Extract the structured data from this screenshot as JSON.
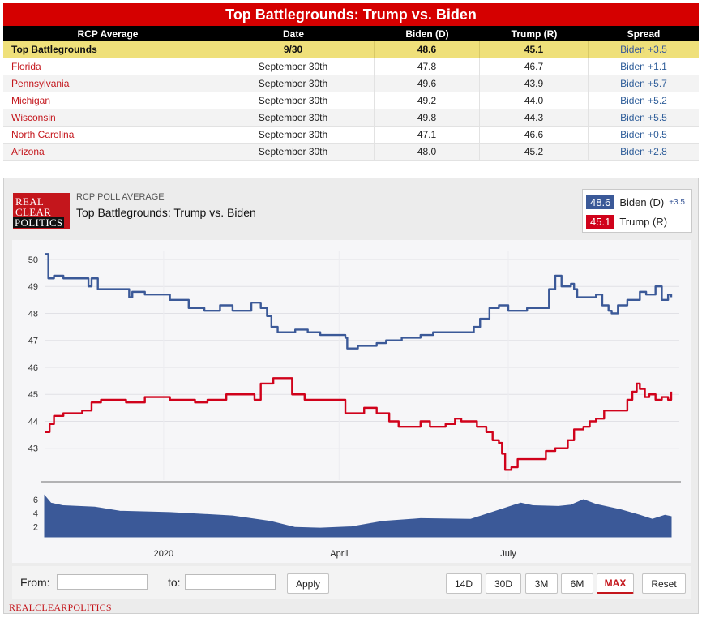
{
  "table": {
    "title": "Top Battlegrounds: Trump vs. Biden",
    "headers": [
      "RCP Average",
      "Date",
      "Biden (D)",
      "Trump (R)",
      "Spread"
    ],
    "average_row": [
      "Top Battlegrounds",
      "9/30",
      "48.6",
      "45.1",
      "Biden +3.5"
    ],
    "rows": [
      [
        "Florida",
        "September 30th",
        "47.8",
        "46.7",
        "Biden +1.1"
      ],
      [
        "Pennsylvania",
        "September 30th",
        "49.6",
        "43.9",
        "Biden +5.7"
      ],
      [
        "Michigan",
        "September 30th",
        "49.2",
        "44.0",
        "Biden +5.2"
      ],
      [
        "Wisconsin",
        "September 30th",
        "49.8",
        "44.3",
        "Biden +5.5"
      ],
      [
        "North Carolina",
        "September 30th",
        "47.1",
        "46.6",
        "Biden +0.5"
      ],
      [
        "Arizona",
        "September 30th",
        "48.0",
        "45.2",
        "Biden +2.8"
      ]
    ]
  },
  "widget": {
    "logo_lines": [
      "REAL",
      "CLEAR",
      "POLITICS"
    ],
    "label": "RCP POLL AVERAGE",
    "title": "Top Battlegrounds: Trump vs. Biden",
    "legend": [
      {
        "value": "48.6",
        "name": "Biden (D)",
        "spread": "+3.5",
        "color": "#3b5998"
      },
      {
        "value": "45.1",
        "name": "Trump (R)",
        "spread": "",
        "color": "#d0021b"
      }
    ],
    "controls": {
      "from_label": "From:",
      "to_label": "to:",
      "apply_label": "Apply",
      "ranges": [
        "14D",
        "30D",
        "3M",
        "6M",
        "MAX"
      ],
      "active_range": "MAX",
      "reset_label": "Reset"
    },
    "brand_footer": "REALCLEARPOLITICS"
  },
  "chart_data": {
    "type": "line",
    "x_tick_labels": [
      "2020",
      "April",
      "July"
    ],
    "x_ticks_at": [
      0.19,
      0.47,
      0.74
    ],
    "ylim": [
      42,
      50.3
    ],
    "yticks": [
      43,
      44,
      45,
      46,
      47,
      48,
      49,
      50
    ],
    "grid": true,
    "series": [
      {
        "name": "Biden (D)",
        "color": "#3b5998",
        "points": [
          [
            0.0,
            50.2
          ],
          [
            0.006,
            49.3
          ],
          [
            0.015,
            49.4
          ],
          [
            0.03,
            49.3
          ],
          [
            0.07,
            49.0
          ],
          [
            0.075,
            49.3
          ],
          [
            0.085,
            48.9
          ],
          [
            0.135,
            48.6
          ],
          [
            0.14,
            48.8
          ],
          [
            0.16,
            48.7
          ],
          [
            0.2,
            48.5
          ],
          [
            0.23,
            48.2
          ],
          [
            0.255,
            48.1
          ],
          [
            0.28,
            48.3
          ],
          [
            0.3,
            48.1
          ],
          [
            0.33,
            48.4
          ],
          [
            0.345,
            48.2
          ],
          [
            0.355,
            47.9
          ],
          [
            0.362,
            47.5
          ],
          [
            0.372,
            47.3
          ],
          [
            0.4,
            47.4
          ],
          [
            0.42,
            47.3
          ],
          [
            0.44,
            47.2
          ],
          [
            0.48,
            47.1
          ],
          [
            0.483,
            46.7
          ],
          [
            0.5,
            46.8
          ],
          [
            0.53,
            46.9
          ],
          [
            0.545,
            47.0
          ],
          [
            0.57,
            47.1
          ],
          [
            0.6,
            47.2
          ],
          [
            0.62,
            47.3
          ],
          [
            0.68,
            47.3
          ],
          [
            0.685,
            47.5
          ],
          [
            0.695,
            47.8
          ],
          [
            0.71,
            48.2
          ],
          [
            0.725,
            48.3
          ],
          [
            0.74,
            48.1
          ],
          [
            0.77,
            48.2
          ],
          [
            0.795,
            48.2
          ],
          [
            0.805,
            48.9
          ],
          [
            0.815,
            49.4
          ],
          [
            0.825,
            49.0
          ],
          [
            0.84,
            49.1
          ],
          [
            0.845,
            48.9
          ],
          [
            0.85,
            48.6
          ],
          [
            0.88,
            48.7
          ],
          [
            0.89,
            48.3
          ],
          [
            0.9,
            48.1
          ],
          [
            0.905,
            48.0
          ],
          [
            0.915,
            48.3
          ],
          [
            0.93,
            48.5
          ],
          [
            0.95,
            48.8
          ],
          [
            0.96,
            48.7
          ],
          [
            0.975,
            49.0
          ],
          [
            0.985,
            48.5
          ],
          [
            0.995,
            48.7
          ],
          [
            1.0,
            48.6
          ]
        ]
      },
      {
        "name": "Trump (R)",
        "color": "#d0021b",
        "points": [
          [
            0.0,
            43.6
          ],
          [
            0.008,
            43.9
          ],
          [
            0.015,
            44.2
          ],
          [
            0.03,
            44.3
          ],
          [
            0.06,
            44.4
          ],
          [
            0.075,
            44.7
          ],
          [
            0.09,
            44.8
          ],
          [
            0.13,
            44.7
          ],
          [
            0.16,
            44.9
          ],
          [
            0.2,
            44.8
          ],
          [
            0.24,
            44.7
          ],
          [
            0.26,
            44.8
          ],
          [
            0.29,
            45.0
          ],
          [
            0.31,
            45.0
          ],
          [
            0.335,
            44.8
          ],
          [
            0.345,
            45.4
          ],
          [
            0.365,
            45.6
          ],
          [
            0.385,
            45.6
          ],
          [
            0.395,
            45.0
          ],
          [
            0.415,
            44.8
          ],
          [
            0.47,
            44.8
          ],
          [
            0.48,
            44.3
          ],
          [
            0.51,
            44.5
          ],
          [
            0.53,
            44.3
          ],
          [
            0.55,
            44.0
          ],
          [
            0.565,
            43.8
          ],
          [
            0.59,
            43.8
          ],
          [
            0.6,
            44.0
          ],
          [
            0.615,
            43.8
          ],
          [
            0.64,
            43.9
          ],
          [
            0.655,
            44.1
          ],
          [
            0.665,
            44.0
          ],
          [
            0.69,
            43.8
          ],
          [
            0.705,
            43.6
          ],
          [
            0.715,
            43.3
          ],
          [
            0.725,
            43.2
          ],
          [
            0.73,
            42.8
          ],
          [
            0.735,
            42.2
          ],
          [
            0.745,
            42.3
          ],
          [
            0.755,
            42.6
          ],
          [
            0.79,
            42.6
          ],
          [
            0.8,
            42.9
          ],
          [
            0.815,
            43.0
          ],
          [
            0.825,
            43.0
          ],
          [
            0.835,
            43.3
          ],
          [
            0.845,
            43.7
          ],
          [
            0.86,
            43.8
          ],
          [
            0.87,
            44.0
          ],
          [
            0.88,
            44.1
          ],
          [
            0.893,
            44.4
          ],
          [
            0.925,
            44.4
          ],
          [
            0.93,
            44.8
          ],
          [
            0.938,
            45.1
          ],
          [
            0.945,
            45.4
          ],
          [
            0.95,
            45.2
          ],
          [
            0.958,
            44.9
          ],
          [
            0.965,
            45.0
          ],
          [
            0.975,
            44.8
          ],
          [
            0.985,
            44.9
          ],
          [
            0.995,
            44.8
          ],
          [
            1.0,
            45.1
          ]
        ]
      }
    ],
    "navigator": {
      "type": "area",
      "color": "#3b5998",
      "yticks": [
        2,
        4,
        6
      ],
      "ylim": [
        0.5,
        7.2
      ],
      "points": [
        [
          0.0,
          6.6
        ],
        [
          0.01,
          5.5
        ],
        [
          0.03,
          5.1
        ],
        [
          0.08,
          4.9
        ],
        [
          0.12,
          4.3
        ],
        [
          0.2,
          4.1
        ],
        [
          0.3,
          3.6
        ],
        [
          0.36,
          2.8
        ],
        [
          0.4,
          1.9
        ],
        [
          0.44,
          1.8
        ],
        [
          0.49,
          2.0
        ],
        [
          0.54,
          2.8
        ],
        [
          0.6,
          3.2
        ],
        [
          0.68,
          3.1
        ],
        [
          0.72,
          4.3
        ],
        [
          0.76,
          5.5
        ],
        [
          0.78,
          5.1
        ],
        [
          0.82,
          5.0
        ],
        [
          0.84,
          5.2
        ],
        [
          0.86,
          6.0
        ],
        [
          0.88,
          5.3
        ],
        [
          0.92,
          4.5
        ],
        [
          0.95,
          3.7
        ],
        [
          0.97,
          3.1
        ],
        [
          0.99,
          3.7
        ],
        [
          1.0,
          3.5
        ]
      ]
    }
  }
}
